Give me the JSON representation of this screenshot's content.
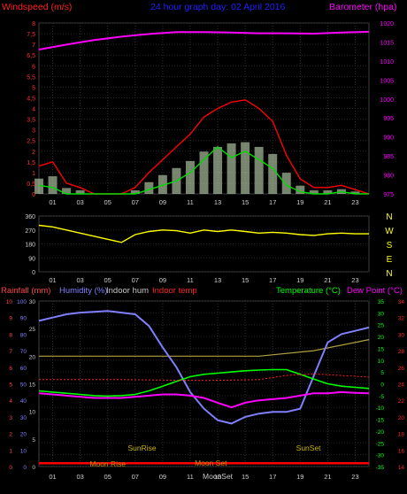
{
  "chart_data": [
    {
      "type": "line",
      "title": "24 hour graph day: 02 April 2016",
      "ylabel_left": "Windspeed (m/s)",
      "ylabel_right": "Barometer (hpa)",
      "ylim_left": [
        0,
        8
      ],
      "ylim_right": [
        975,
        1020
      ],
      "left_ticks": [
        "0",
        "0,5",
        "1",
        "1,5",
        "2",
        "2,5",
        "3",
        "3,5",
        "4",
        "4,5",
        "5",
        "5,5",
        "6",
        "6,5",
        "7",
        "7,5",
        "8"
      ],
      "right_ticks": [
        "975",
        "980",
        "985",
        "990",
        "995",
        "1000",
        "1005",
        "1010",
        "1015",
        "1020"
      ],
      "x_ticks": [
        "01",
        "03",
        "05",
        "07",
        "09",
        "11",
        "13",
        "15",
        "17",
        "19",
        "21",
        "23"
      ],
      "colors": {
        "gust": "#ff0000",
        "avg_wind": "#00cc00",
        "wind_bars": "#d8f0c8",
        "barometer": "#ff00ff"
      },
      "series": [
        {
          "name": "Barometer (hpa)",
          "x": [
            0,
            2,
            4,
            6,
            8,
            10,
            12,
            14,
            16,
            18,
            20,
            22,
            24
          ],
          "values": [
            1013,
            1014.3,
            1015.5,
            1016.4,
            1017.1,
            1017.6,
            1017.6,
            1017.5,
            1017.3,
            1017.3,
            1017.2,
            1017.5,
            1017.7
          ]
        },
        {
          "name": "Gust",
          "x": [
            0,
            1,
            2,
            3,
            4,
            5,
            6,
            7,
            8,
            9,
            10,
            11,
            12,
            13,
            14,
            15,
            16,
            17,
            18,
            19,
            20,
            21,
            22,
            23,
            24
          ],
          "values": [
            1.3,
            1.5,
            0.5,
            0.3,
            0,
            0,
            0,
            0.3,
            1.0,
            1.6,
            2.2,
            2.8,
            3.6,
            4.0,
            4.3,
            4.4,
            4.0,
            3.4,
            1.8,
            0.7,
            0.3,
            0.3,
            0.4,
            0.2,
            0
          ]
        },
        {
          "name": "Average",
          "x": [
            0,
            1,
            2,
            3,
            4,
            5,
            6,
            7,
            8,
            9,
            10,
            11,
            12,
            13,
            14,
            15,
            16,
            17,
            18,
            19,
            20,
            21,
            22,
            23,
            24
          ],
          "values": [
            0.4,
            0.3,
            0,
            0,
            0,
            0,
            0,
            0,
            0.2,
            0.4,
            0.6,
            1.0,
            1.6,
            2.2,
            1.7,
            2.0,
            1.6,
            1.2,
            0.4,
            0.1,
            0,
            0,
            0.1,
            0,
            0
          ]
        }
      ]
    },
    {
      "type": "line",
      "ylim": [
        0,
        360
      ],
      "left_ticks": [
        "0",
        "90",
        "180",
        "270",
        "360"
      ],
      "compass": [
        "N",
        "W",
        "S",
        "E",
        "N"
      ],
      "x_ticks": [
        "01",
        "03",
        "05",
        "07",
        "09",
        "11",
        "13",
        "15",
        "17",
        "19",
        "21",
        "23"
      ],
      "colors": {
        "direction": "#ffff00"
      },
      "series": [
        {
          "name": "Wind direction",
          "x": [
            0,
            1,
            2,
            3,
            4,
            5,
            6,
            7,
            8,
            9,
            10,
            11,
            12,
            13,
            14,
            15,
            16,
            17,
            18,
            19,
            20,
            21,
            22,
            23,
            24
          ],
          "values": [
            300,
            290,
            270,
            250,
            230,
            210,
            190,
            240,
            260,
            270,
            265,
            250,
            270,
            260,
            270,
            260,
            250,
            255,
            250,
            240,
            235,
            245,
            250,
            245,
            245
          ]
        }
      ]
    },
    {
      "type": "line",
      "legend": [
        {
          "label": "Rainfall (mm)",
          "color": "#ff4444"
        },
        {
          "label": "Humidity (%)",
          "color": "#8080ff"
        },
        {
          "label": "Indoor hum",
          "color": "#c8c8c8"
        },
        {
          "label": "Indoor temp",
          "color": "#ff2020"
        },
        {
          "label": "Temperature (°C)",
          "color": "#00ff00"
        },
        {
          "label": "Dew Point (°C)",
          "color": "#ff00ff"
        }
      ],
      "axes": {
        "rain_ticks": [
          "0",
          "1",
          "2",
          "3",
          "4",
          "5",
          "6",
          "7",
          "8",
          "9",
          "10"
        ],
        "humidity_ticks": [
          "0",
          "5",
          "10",
          "15",
          "20",
          "25",
          "30"
        ],
        "hum_pct_ticks": [
          "0",
          "10",
          "20",
          "30",
          "40",
          "50",
          "60",
          "70",
          "80",
          "90",
          "100"
        ],
        "temp_ticks": [
          "-35",
          "-30",
          "-25",
          "-20",
          "-15",
          "-10",
          "-5",
          "0",
          "5",
          "10",
          "15",
          "20",
          "25",
          "30",
          "35"
        ],
        "indoor_ticks": [
          "14",
          "16",
          "18",
          "20",
          "22",
          "24",
          "26",
          "28",
          "30",
          "32",
          "34"
        ]
      },
      "x_ticks": [
        "01",
        "03",
        "05",
        "07",
        "09",
        "11",
        "13",
        "15",
        "17",
        "19",
        "21",
        "23"
      ],
      "annotations": [
        "SunRise",
        "SunSet",
        "Moon Rise",
        "Moon Set",
        "MoonSet"
      ],
      "series": [
        {
          "name": "Humidity (%)",
          "x": [
            0,
            1,
            2,
            3,
            4,
            5,
            6,
            7,
            8,
            9,
            10,
            11,
            12,
            13,
            14,
            15,
            16,
            17,
            18,
            19,
            20,
            21,
            22,
            23,
            24
          ],
          "values": [
            88,
            90,
            92,
            93,
            93.5,
            94,
            93,
            92,
            85,
            72,
            60,
            45,
            35,
            28,
            26,
            30,
            32,
            33,
            33,
            35,
            55,
            75,
            80,
            82,
            84
          ]
        },
        {
          "name": "Temperature (°C)",
          "x": [
            0,
            1,
            2,
            3,
            4,
            5,
            6,
            7,
            8,
            9,
            10,
            11,
            12,
            13,
            14,
            15,
            16,
            17,
            18,
            19,
            20,
            21,
            22,
            23,
            24
          ],
          "values": [
            -3,
            -3.5,
            -4,
            -4.5,
            -5,
            -5.2,
            -5,
            -4.5,
            -3,
            -1,
            1,
            3,
            4,
            4.5,
            5,
            5.5,
            5.8,
            6,
            6,
            4,
            2,
            0,
            -1,
            -1.5,
            -2
          ]
        },
        {
          "name": "Dew Point (°C)",
          "x": [
            0,
            1,
            2,
            3,
            4,
            5,
            6,
            7,
            8,
            9,
            10,
            11,
            12,
            13,
            14,
            15,
            16,
            17,
            18,
            19,
            20,
            21,
            22,
            23,
            24
          ],
          "values": [
            -4,
            -4.5,
            -5,
            -5.5,
            -6,
            -6,
            -6,
            -5.5,
            -5,
            -4.5,
            -4.5,
            -5,
            -6,
            -8,
            -10,
            -8,
            -7,
            -6.5,
            -6,
            -5,
            -4,
            -4,
            -3.5,
            -3.8,
            -4
          ]
        },
        {
          "name": "Indoor hum",
          "x": [
            0,
            4,
            8,
            12,
            16,
            20,
            24
          ],
          "values": [
            20,
            20,
            20,
            20,
            20,
            21,
            23
          ]
        },
        {
          "name": "Indoor temp",
          "x": [
            0,
            6,
            12,
            16,
            18,
            20,
            22,
            24
          ],
          "values": [
            24.5,
            24.5,
            24.4,
            24.5,
            25,
            25.2,
            25,
            24.8
          ]
        },
        {
          "name": "Rainfall (mm)",
          "x": [
            0,
            24
          ],
          "values": [
            0.2,
            0.2
          ]
        }
      ]
    }
  ]
}
